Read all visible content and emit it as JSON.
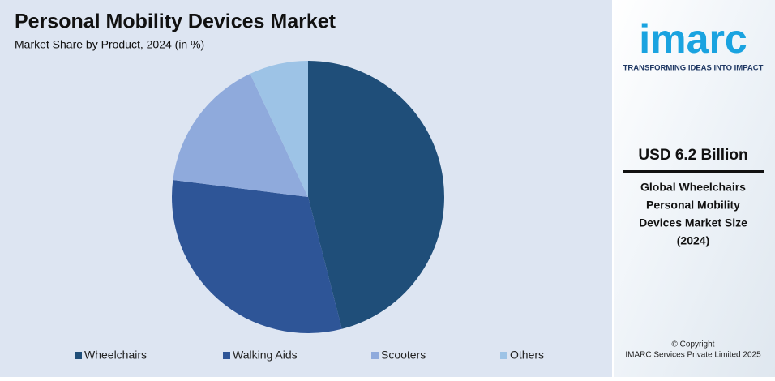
{
  "chart_data": {
    "type": "pie",
    "title": "Personal Mobility Devices Market",
    "subtitle": "Market Share by Product, 2024 (in %)",
    "categories": [
      "Wheelchairs",
      "Walking Aids",
      "Scooters",
      "Others"
    ],
    "values": [
      46,
      31,
      16,
      7
    ],
    "colors": [
      "#1f4e79",
      "#2e5597",
      "#8faadc",
      "#9dc3e6"
    ],
    "legend": "bottom"
  },
  "side_panel": {
    "logo": "imarc",
    "tagline": "TRANSFORMING IDEAS INTO IMPACT",
    "headline": "USD 6.2 Billion",
    "description": [
      "Global Wheelchairs",
      "Personal Mobility",
      "Devices Market Size",
      "(2024)"
    ],
    "copyright": [
      "© Copyright",
      "IMARC Services Private Limited 2025"
    ]
  }
}
